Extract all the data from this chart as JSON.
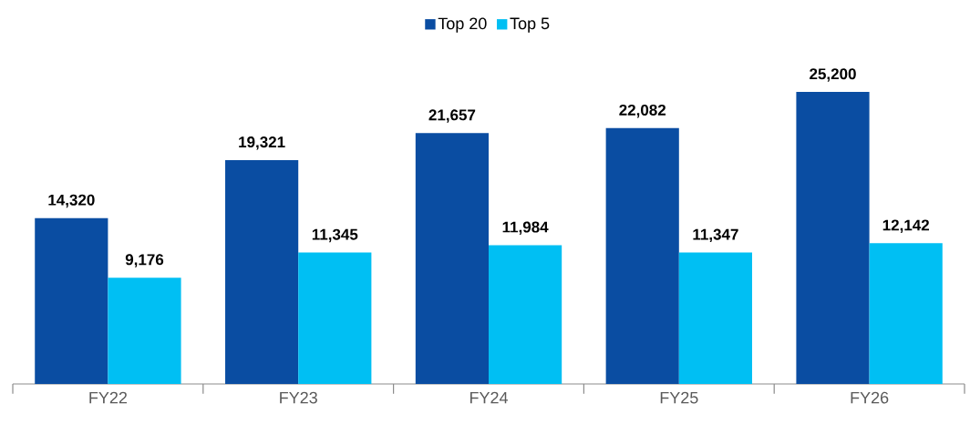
{
  "chart_data": {
    "type": "bar",
    "categories": [
      "FY22",
      "FY23",
      "FY24",
      "FY25",
      "FY26"
    ],
    "series": [
      {
        "name": "Top 20",
        "color": "#0a4da2",
        "values": [
          14320,
          19321,
          21657,
          22082,
          25200
        ],
        "value_labels": [
          "14,320",
          "19,321",
          "21,657",
          "22,082",
          "25,200"
        ]
      },
      {
        "name": "Top 5",
        "color": "#00bff3",
        "values": [
          9176,
          11345,
          11984,
          11347,
          12142
        ],
        "value_labels": [
          "9,176",
          "11,345",
          "11,984",
          "11,347",
          "12,142"
        ]
      }
    ],
    "legend": "top"
  }
}
